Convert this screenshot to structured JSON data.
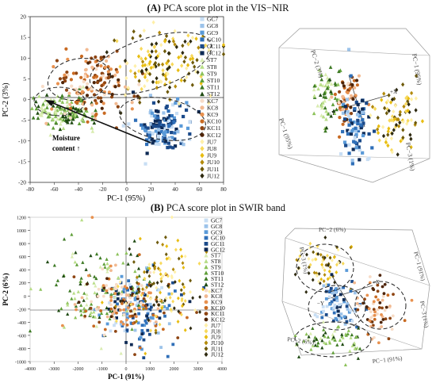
{
  "panelA": {
    "letter": "(A)",
    "title": "PCA score plot in the VIS−NIR",
    "xlabel": "PC-1 (95%)",
    "ylabel": "PC-2 (3%)",
    "annotation_line1": "Moisture",
    "annotation_line2": "content ↑",
    "axes3d": {
      "pc2": "PC−2 (3%)",
      "pc1a": "PC−1 (95%)",
      "pc1b": "PC−1 (95%)",
      "pc3": "PC−3 (1%)",
      "y": "−Y",
      "x": "+X"
    }
  },
  "panelB": {
    "letter": "(B)",
    "title": "PCA score plot in SWIR band",
    "xlabel": "PC-1 (91%)",
    "ylabel": "PC-2 (6%)",
    "axes3d": {
      "pc2top": "PC−2 (6%)",
      "pc2bot": "PC−2 (6%)",
      "pc1": "PC−1 (91%)",
      "pc1b": "PC−1 (91%)",
      "pc3": "PC−3 (1%)",
      "pc3b": "PC−3 (1%)",
      "y": "−Y",
      "x": "+X"
    }
  },
  "legend": [
    {
      "name": "GC7",
      "color": "#c8def4",
      "marker": "square"
    },
    {
      "name": "GC8",
      "color": "#9cc3ea",
      "marker": "square"
    },
    {
      "name": "GC9",
      "color": "#5a9ad8",
      "marker": "square"
    },
    {
      "name": "GC10",
      "color": "#2f6fb8",
      "marker": "square"
    },
    {
      "name": "GC11",
      "color": "#1b4a8a",
      "marker": "square"
    },
    {
      "name": "GC12",
      "color": "#0e2a55",
      "marker": "square"
    },
    {
      "name": "ST7",
      "color": "#d9ecb0",
      "marker": "triangle"
    },
    {
      "name": "ST8",
      "color": "#b7dd86",
      "marker": "triangle"
    },
    {
      "name": "ST9",
      "color": "#8cc25a",
      "marker": "triangle"
    },
    {
      "name": "ST10",
      "color": "#5e9e37",
      "marker": "triangle"
    },
    {
      "name": "ST11",
      "color": "#3d7a24",
      "marker": "triangle"
    },
    {
      "name": "ST12",
      "color": "#1f4a12",
      "marker": "triangle"
    },
    {
      "name": "KC7",
      "color": "#f7dcc7",
      "marker": "circle"
    },
    {
      "name": "KC8",
      "color": "#f2b990",
      "marker": "circle"
    },
    {
      "name": "KC9",
      "color": "#e8914f",
      "marker": "circle"
    },
    {
      "name": "KC10",
      "color": "#c86a22",
      "marker": "circle"
    },
    {
      "name": "KC11",
      "color": "#8e4513",
      "marker": "circle"
    },
    {
      "name": "KC12",
      "color": "#4f2508",
      "marker": "circle"
    },
    {
      "name": "JU7",
      "color": "#fff0a8",
      "marker": "diamond"
    },
    {
      "name": "JU8",
      "color": "#f8d95a",
      "marker": "diamond"
    },
    {
      "name": "JU9",
      "color": "#e8bd12",
      "marker": "diamond"
    },
    {
      "name": "JU10",
      "color": "#b38a0a",
      "marker": "diamond"
    },
    {
      "name": "JU11",
      "color": "#6e5a0a",
      "marker": "diamond"
    },
    {
      "name": "JU12",
      "color": "#2e2a10",
      "marker": "diamond"
    }
  ],
  "chart_data": [
    {
      "type": "scatter",
      "title": "PCA score plot in the VIS−NIR",
      "xlabel": "PC-1 (95%)",
      "ylabel": "PC-2 (3%)",
      "xlim": [
        -80,
        80
      ],
      "ylim": [
        -20,
        20
      ],
      "xticks": [
        -80,
        -60,
        -40,
        -20,
        0,
        20,
        40,
        60,
        80
      ],
      "yticks": [
        -20,
        -15,
        -10,
        -5,
        0,
        5,
        10,
        15,
        20
      ],
      "grid": false,
      "legend_position": "right",
      "clusters": [
        {
          "group": "GC",
          "center": [
            30,
            -7
          ],
          "spread": [
            12,
            3
          ]
        },
        {
          "group": "ST",
          "center": [
            -50,
            -3
          ],
          "spread": [
            12,
            2
          ]
        },
        {
          "group": "KC",
          "center": [
            -28,
            3
          ],
          "spread": [
            17,
            4
          ]
        },
        {
          "group": "JU",
          "center": [
            28,
            9
          ],
          "spread": [
            20,
            4
          ]
        }
      ]
    },
    {
      "type": "scatter",
      "title": "PCA score plot in SWIR band",
      "xlabel": "PC-1 (91%)",
      "ylabel": "PC-2 (6%)",
      "xlim": [
        -4000,
        4000
      ],
      "ylim": [
        -1000,
        1200
      ],
      "xticks": [
        -4000,
        -3000,
        -2000,
        -1000,
        0,
        1000,
        2000,
        3000,
        4000
      ],
      "yticks": [
        -1000,
        -800,
        -600,
        -400,
        -200,
        0,
        200,
        400,
        600,
        800,
        1000,
        1200
      ],
      "grid": false,
      "legend_position": "right",
      "clusters": [
        {
          "group": "GC",
          "center": [
            500,
            -250
          ],
          "spread": [
            800,
            250
          ]
        },
        {
          "group": "ST",
          "center": [
            -1200,
            100
          ],
          "spread": [
            1000,
            350
          ]
        },
        {
          "group": "KC",
          "center": [
            0,
            -100
          ],
          "spread": [
            1100,
            250
          ]
        },
        {
          "group": "JU",
          "center": [
            1400,
            200
          ],
          "spread": [
            900,
            350
          ]
        }
      ]
    }
  ]
}
